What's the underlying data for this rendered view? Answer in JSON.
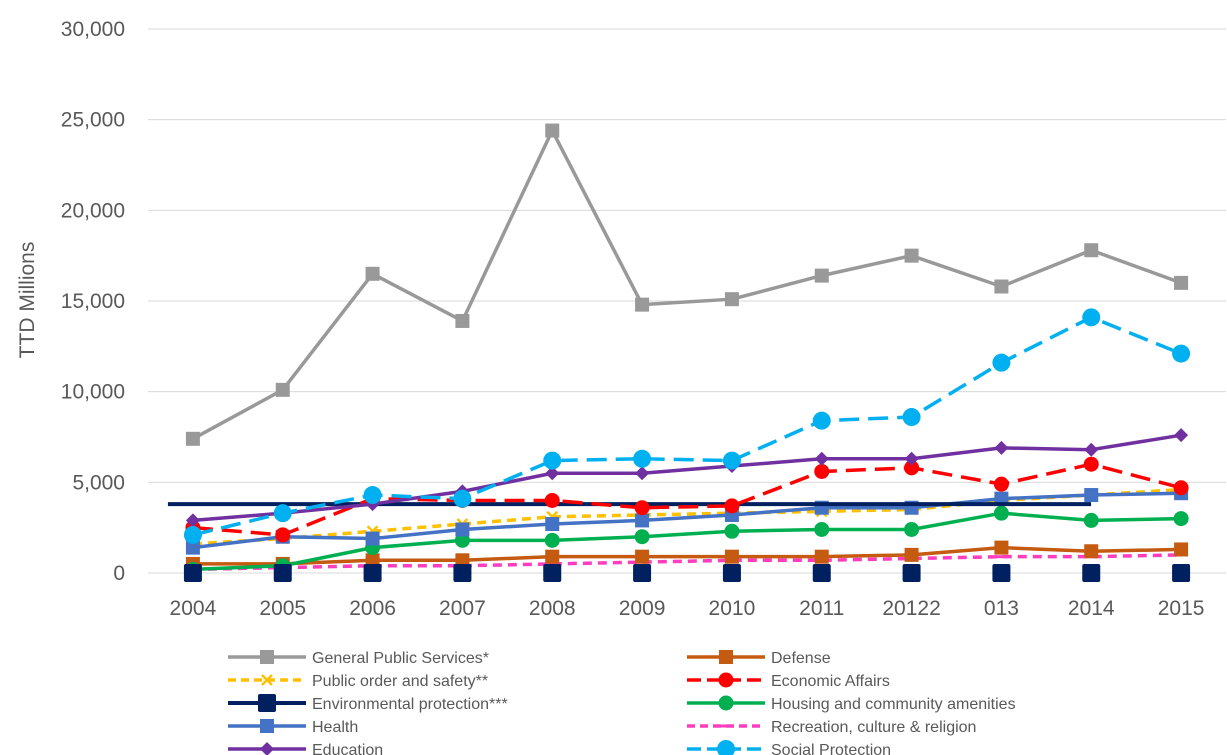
{
  "chart_data": {
    "type": "line",
    "ylabel": "TTD Millions",
    "xlabel": "",
    "ylim": [
      0,
      30000
    ],
    "yticks": [
      0,
      5000,
      10000,
      15000,
      20000,
      25000,
      30000
    ],
    "ytick_labels": [
      "0",
      "5,000",
      "10,000",
      "15,000",
      "20,000",
      "25,000",
      "30,000"
    ],
    "categories": [
      "2004",
      "2005",
      "2006",
      "2007",
      "2008",
      "2009",
      "2010",
      "2011",
      "20122",
      "013",
      "2014",
      "2015"
    ],
    "grid": "horizontal",
    "legend_position": "bottom",
    "series": [
      {
        "name": "General Public Services*",
        "color": "#999999",
        "dash": "solid",
        "marker": "square",
        "values": [
          7400,
          10100,
          16500,
          13900,
          24400,
          14800,
          15100,
          16400,
          17500,
          15800,
          17800,
          16000
        ]
      },
      {
        "name": "Defense",
        "color": "#C55A11",
        "dash": "solid",
        "marker": "square",
        "values": [
          500,
          500,
          700,
          700,
          900,
          900,
          900,
          900,
          1000,
          1400,
          1200,
          1300
        ]
      },
      {
        "name": "Public order and safety**",
        "color": "#FFC000",
        "dash": "dash",
        "marker": "x",
        "values": [
          1600,
          1900,
          2300,
          2700,
          3100,
          3200,
          3300,
          3400,
          3500,
          4000,
          4300,
          4600
        ]
      },
      {
        "name": "Economic Affairs",
        "color": "#FF0000",
        "dash": "longdash",
        "marker": "circle",
        "values": [
          2500,
          2100,
          4100,
          4000,
          4000,
          3600,
          3700,
          5600,
          5800,
          4900,
          6000,
          4700
        ]
      },
      {
        "name": "Environmental protection***",
        "color": "#002060",
        "dash": "solid",
        "marker": "square-big",
        "values": [
          0,
          0,
          0,
          0,
          0,
          0,
          0,
          0,
          0,
          0,
          0,
          0
        ],
        "reference_line": 3800
      },
      {
        "name": "Housing and community amenities",
        "color": "#00B050",
        "dash": "solid",
        "marker": "circle",
        "values": [
          200,
          400,
          1400,
          1800,
          1800,
          2000,
          2300,
          2400,
          2400,
          3300,
          2900,
          3000
        ]
      },
      {
        "name": "Health",
        "color": "#4472C4",
        "dash": "solid",
        "marker": "square",
        "values": [
          1400,
          2000,
          1900,
          2400,
          2700,
          2900,
          3200,
          3600,
          3600,
          4100,
          4300,
          4400
        ]
      },
      {
        "name": "Recreation, culture & religion",
        "color": "#FF3DBE",
        "dash": "dash",
        "marker": "dash",
        "values": [
          200,
          300,
          400,
          400,
          500,
          600,
          700,
          700,
          800,
          900,
          900,
          1000
        ]
      },
      {
        "name": "Education",
        "color": "#7030A0",
        "dash": "solid",
        "marker": "diamond",
        "values": [
          2900,
          3300,
          3800,
          4500,
          5500,
          5500,
          5900,
          6300,
          6300,
          6900,
          6800,
          7600
        ]
      },
      {
        "name": "Social Protection",
        "color": "#00B0F0",
        "dash": "longdash",
        "marker": "circle-big",
        "values": [
          2100,
          3300,
          4300,
          4100,
          6200,
          6300,
          6200,
          8400,
          8600,
          11600,
          14100,
          12100
        ]
      }
    ]
  }
}
